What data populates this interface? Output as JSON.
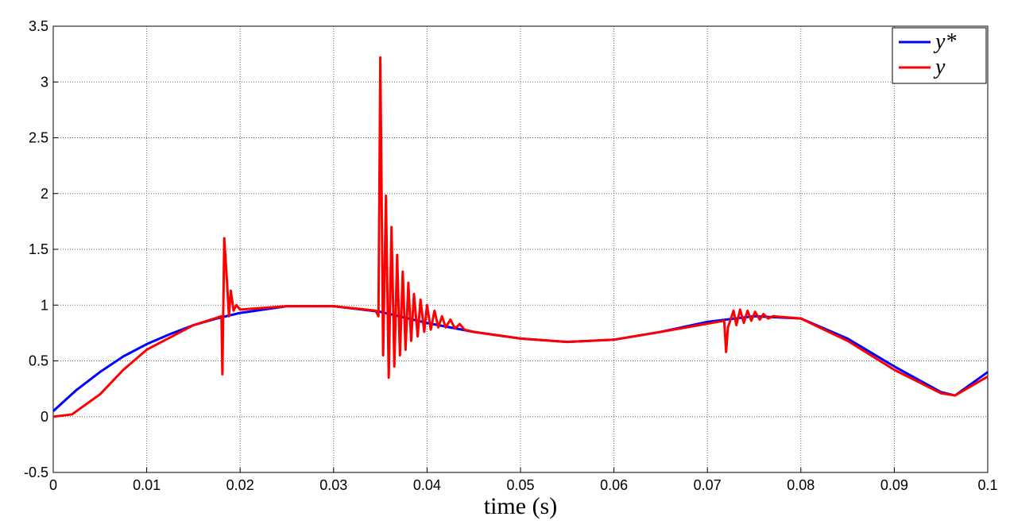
{
  "chart_data": {
    "type": "line",
    "xlabel": "time (s)",
    "xlim": [
      0,
      0.1
    ],
    "xticks": [
      0,
      0.01,
      0.02,
      0.03,
      0.04,
      0.05,
      0.06,
      0.07,
      0.08,
      0.09,
      0.1
    ],
    "ylim": [
      -0.5,
      3.5
    ],
    "yticks": [
      -0.5,
      0,
      0.5,
      1,
      1.5,
      2,
      2.5,
      3,
      3.5
    ],
    "grid": true,
    "legend": "top-right",
    "series": [
      {
        "name": "y*",
        "color": "#0000ff",
        "x": [
          0,
          0.0025,
          0.005,
          0.0075,
          0.01,
          0.0125,
          0.015,
          0.0175,
          0.02,
          0.025,
          0.03,
          0.035,
          0.04,
          0.045,
          0.05,
          0.055,
          0.06,
          0.065,
          0.07,
          0.075,
          0.08,
          0.085,
          0.09,
          0.095,
          0.0965,
          0.1
        ],
        "values": [
          0.05,
          0.24,
          0.4,
          0.54,
          0.65,
          0.74,
          0.82,
          0.88,
          0.93,
          0.99,
          0.99,
          0.94,
          0.84,
          0.76,
          0.7,
          0.67,
          0.69,
          0.76,
          0.85,
          0.9,
          0.88,
          0.7,
          0.45,
          0.22,
          0.19,
          0.4
        ]
      },
      {
        "name": "y",
        "color": "#ff0000",
        "x": [
          0,
          0.002,
          0.005,
          0.0075,
          0.01,
          0.015,
          0.018,
          0.0181,
          0.0183,
          0.0186,
          0.0188,
          0.019,
          0.0193,
          0.0196,
          0.02,
          0.025,
          0.03,
          0.0345,
          0.0348,
          0.035,
          0.0353,
          0.0356,
          0.0359,
          0.0362,
          0.0365,
          0.0368,
          0.0371,
          0.0374,
          0.0377,
          0.038,
          0.0383,
          0.0386,
          0.039,
          0.0393,
          0.0397,
          0.04,
          0.0404,
          0.0408,
          0.0412,
          0.0416,
          0.042,
          0.0425,
          0.043,
          0.0435,
          0.044,
          0.045,
          0.05,
          0.055,
          0.06,
          0.065,
          0.0718,
          0.072,
          0.0722,
          0.0728,
          0.0731,
          0.0735,
          0.0739,
          0.0743,
          0.0747,
          0.0751,
          0.0756,
          0.076,
          0.0765,
          0.077,
          0.08,
          0.085,
          0.09,
          0.095,
          0.0965,
          0.1
        ],
        "values": [
          0,
          0.02,
          0.2,
          0.42,
          0.6,
          0.82,
          0.9,
          0.38,
          1.6,
          1.2,
          0.9,
          1.13,
          0.95,
          1.0,
          0.96,
          0.99,
          0.99,
          0.95,
          0.9,
          3.22,
          0.55,
          1.98,
          0.35,
          1.7,
          0.45,
          1.45,
          0.55,
          1.3,
          0.6,
          1.2,
          0.68,
          1.1,
          0.72,
          1.05,
          0.76,
          1.0,
          0.78,
          0.95,
          0.8,
          0.9,
          0.8,
          0.87,
          0.79,
          0.83,
          0.78,
          0.76,
          0.7,
          0.67,
          0.69,
          0.76,
          0.86,
          0.58,
          0.8,
          0.95,
          0.82,
          0.96,
          0.84,
          0.95,
          0.86,
          0.94,
          0.87,
          0.92,
          0.88,
          0.9,
          0.88,
          0.68,
          0.42,
          0.21,
          0.19,
          0.36
        ]
      }
    ]
  }
}
